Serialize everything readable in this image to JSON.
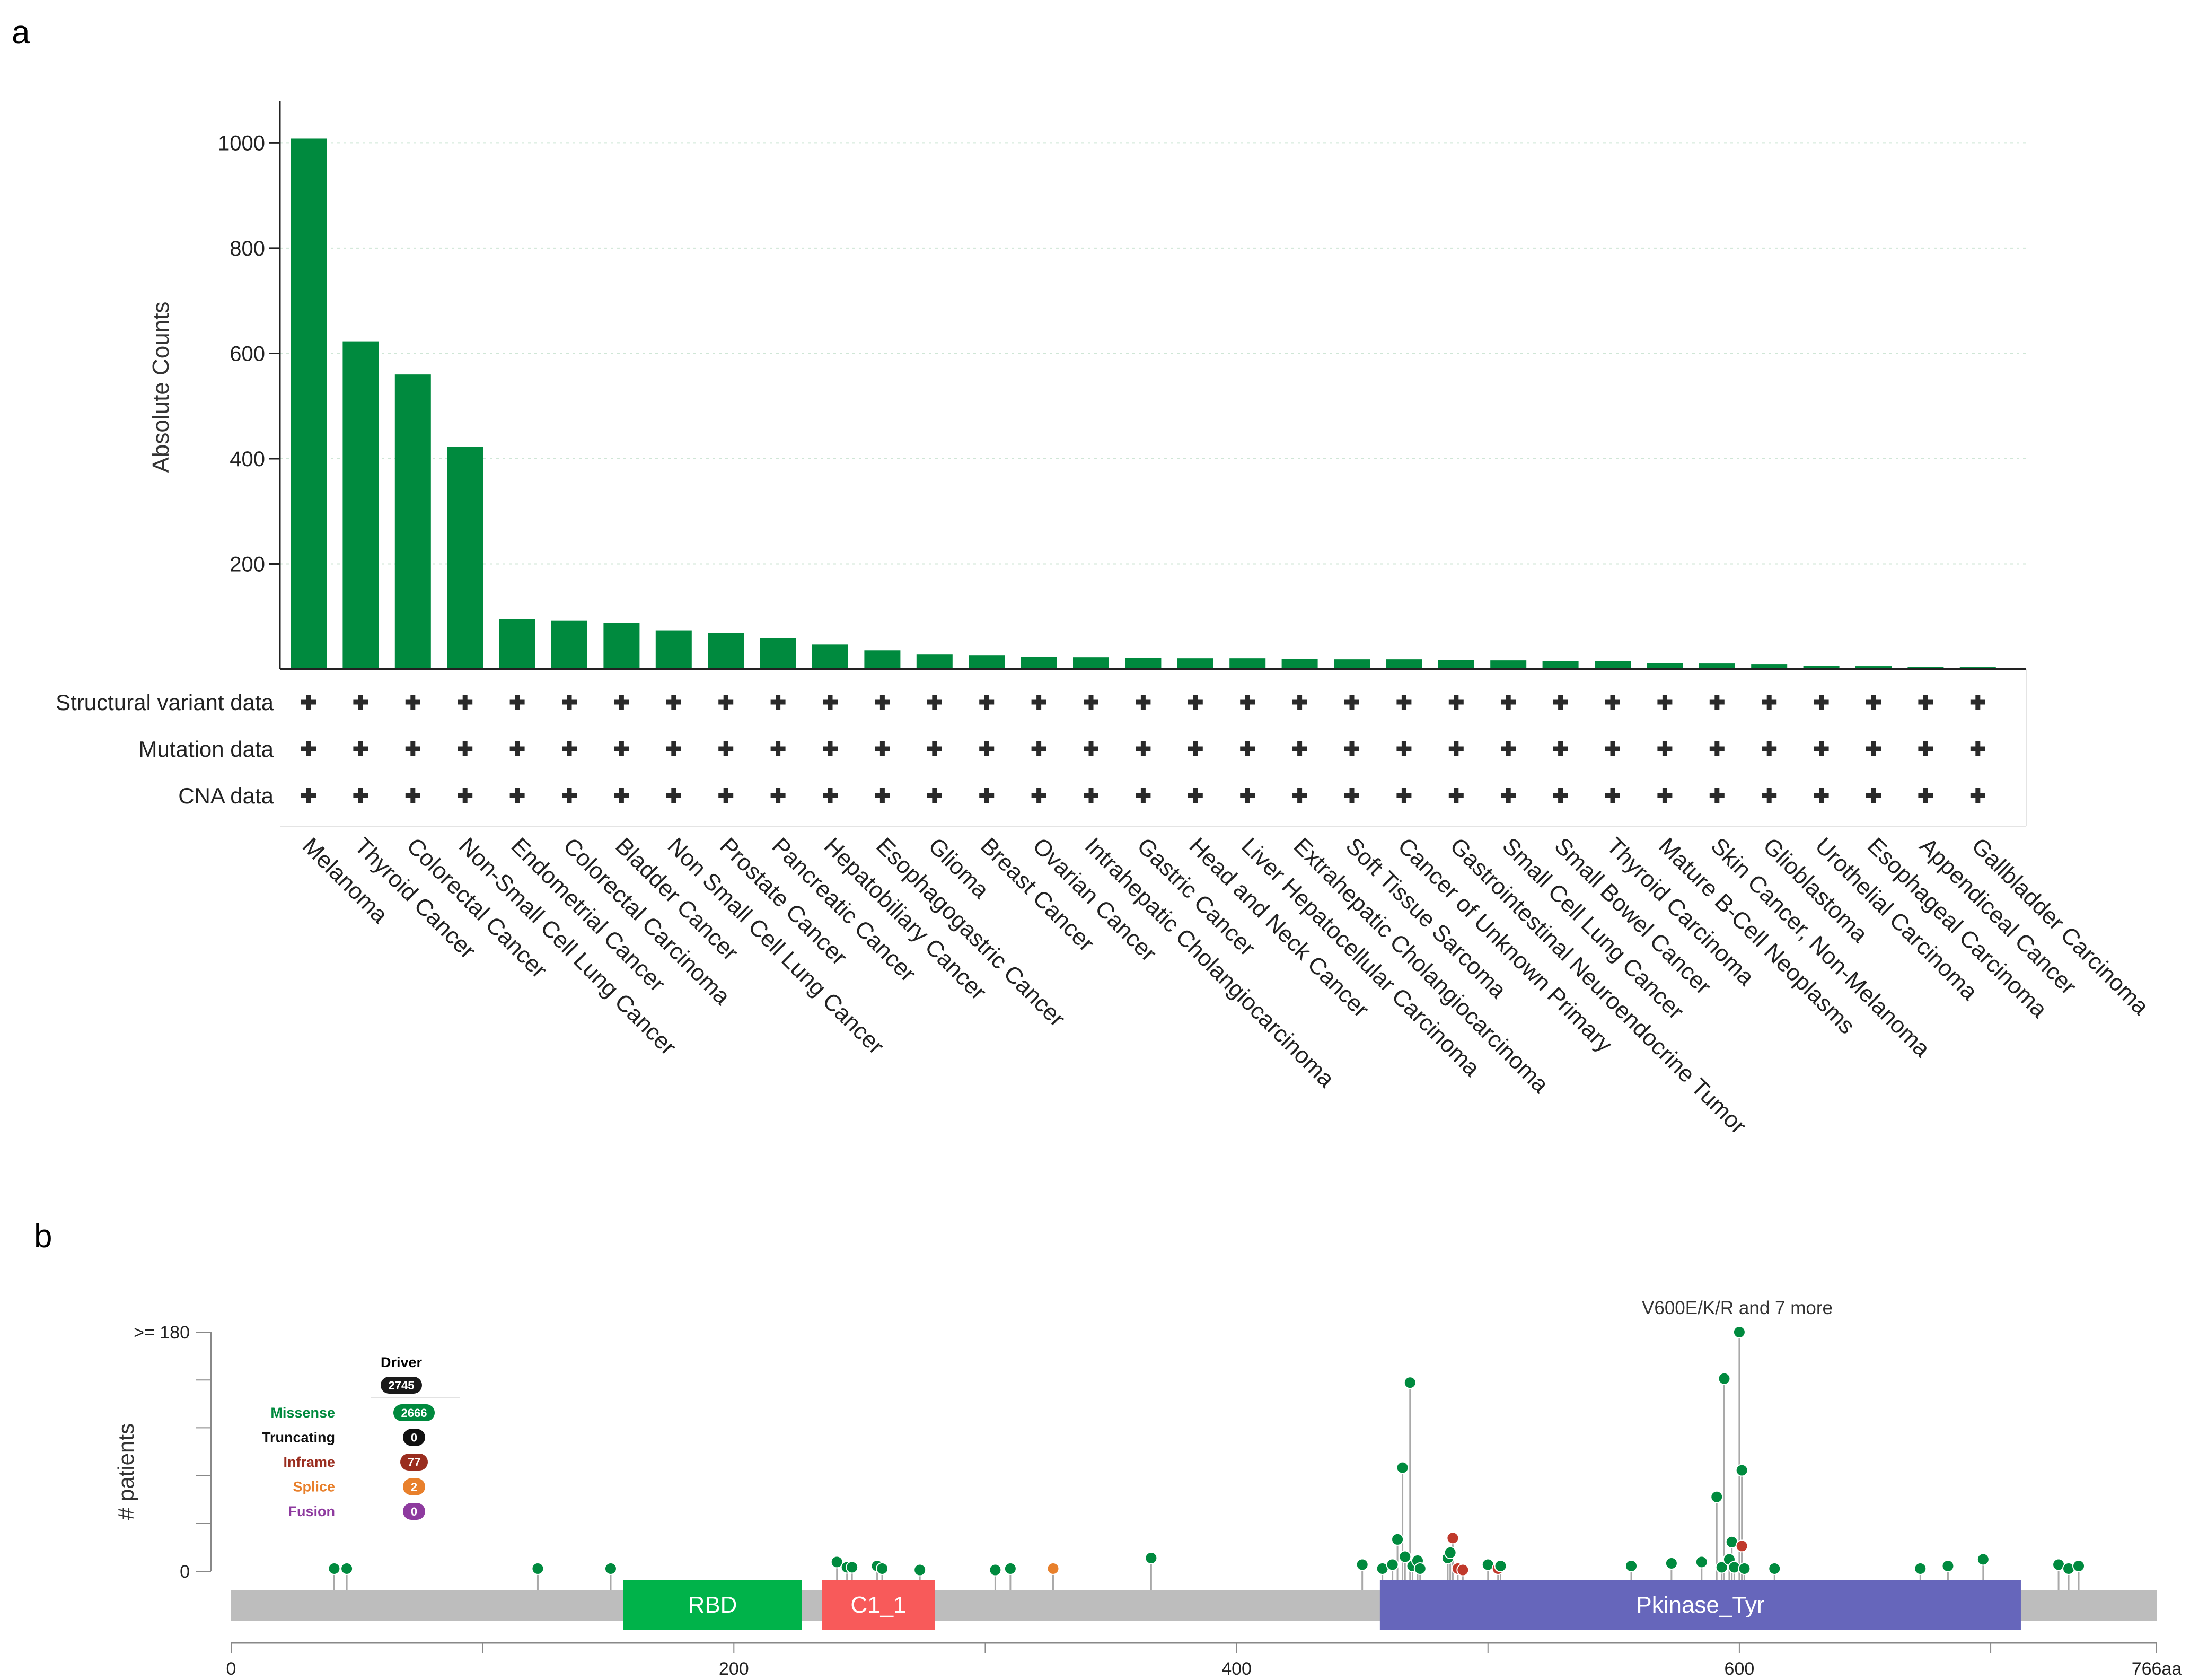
{
  "panels": {
    "a": "a",
    "b": "b"
  },
  "chart_data": [
    {
      "type": "bar",
      "title": "",
      "xlabel": "",
      "ylabel": "Absolute Counts",
      "ylim": [
        0,
        1080
      ],
      "yticks": [
        200,
        400,
        600,
        800,
        1000
      ],
      "grid": true,
      "bar_color": "#008a3e",
      "categories": [
        "Melanoma",
        "Thyroid Cancer",
        "Colorectal Cancer",
        "Non-Small Cell Lung Cancer",
        "Endometrial Cancer",
        "Colorectal Carcinoma",
        "Bladder Cancer",
        "Non Small Cell Lung Cancer",
        "Prostate Cancer",
        "Pancreatic Cancer",
        "Hepatobiliary Cancer",
        "Esophagogastric Cancer",
        "Glioma",
        "Breast Cancer",
        "Ovarian Cancer",
        "Intrahepatic Cholangiocarcinoma",
        "Gastric Cancer",
        "Head and Neck Cancer",
        "Liver Hepatocellular Carcinoma",
        "Extrahepatic Cholangiocarcinoma",
        "Soft Tissue Sarcoma",
        "Cancer of Unknown Primary",
        "Gastrointestinal Neuroendocrine Tumor",
        "Small Cell Lung Cancer",
        "Small Bowel Cancer",
        "Thyroid Carcinoma",
        "Mature B-Cell Neoplasms",
        "Skin Cancer, Non-Melanoma",
        "Glioblastoma",
        "Urothelial Carcinoma",
        "Esophageal Carcinoma",
        "Appendiceal Cancer",
        "Gallbladder Carcinoma"
      ],
      "values": [
        1008,
        623,
        560,
        423,
        95,
        92,
        88,
        74,
        69,
        59,
        47,
        36,
        28,
        26,
        24,
        23,
        22,
        21,
        21,
        20,
        19,
        19,
        18,
        17,
        16,
        16,
        12,
        11,
        9,
        7,
        6,
        5,
        4
      ],
      "data_availability": {
        "rows": [
          "Structural variant data",
          "Mutation data",
          "CNA data"
        ],
        "marker": "+"
      }
    },
    {
      "type": "scatter",
      "subtype": "lollipop",
      "ylabel": "# patients",
      "ytick_labels": [
        "0",
        ">= 180"
      ],
      "ylim": [
        0,
        180
      ],
      "xlim": [
        0,
        766
      ],
      "xtick_labels": [
        "0",
        "200",
        "400",
        "600",
        "766aa"
      ],
      "xticks": [
        0,
        200,
        400,
        600,
        766
      ],
      "annotation": "V600E/K/R and 7 more",
      "domains": [
        {
          "name": "RBD",
          "start": 156,
          "end": 227,
          "color": "#00b34a"
        },
        {
          "name": "C1_1",
          "start": 235,
          "end": 280,
          "color": "#f85a5a"
        },
        {
          "name": "Pkinase_Tyr",
          "start": 457,
          "end": 712,
          "color": "#6666bb"
        }
      ],
      "legend": {
        "title": "Driver",
        "total": "2745",
        "items": [
          {
            "label": "Missense",
            "count": "2666",
            "color": "#008a3e"
          },
          {
            "label": "Truncating",
            "count": "0",
            "color": "#111111"
          },
          {
            "label": "Inframe",
            "count": "77",
            "color": "#9a2d1f"
          },
          {
            "label": "Splice",
            "count": "2",
            "color": "#e8802c"
          },
          {
            "label": "Fusion",
            "count": "0",
            "color": "#8e3a9f"
          }
        ]
      },
      "mutation_colors": {
        "missense": "#008a3e",
        "inframe": "#c0392b",
        "splice": "#e8802c"
      },
      "mutations": [
        {
          "pos": 41,
          "count": 2,
          "type": "missense"
        },
        {
          "pos": 46,
          "count": 2,
          "type": "missense"
        },
        {
          "pos": 122,
          "count": 2,
          "type": "missense"
        },
        {
          "pos": 151,
          "count": 2,
          "type": "missense"
        },
        {
          "pos": 241,
          "count": 7,
          "type": "missense"
        },
        {
          "pos": 245,
          "count": 3,
          "type": "missense"
        },
        {
          "pos": 247,
          "count": 3,
          "type": "missense"
        },
        {
          "pos": 257,
          "count": 4,
          "type": "missense"
        },
        {
          "pos": 259,
          "count": 2,
          "type": "missense"
        },
        {
          "pos": 274,
          "count": 1,
          "type": "missense"
        },
        {
          "pos": 304,
          "count": 1,
          "type": "missense"
        },
        {
          "pos": 310,
          "count": 2,
          "type": "missense"
        },
        {
          "pos": 327,
          "count": 2,
          "type": "splice"
        },
        {
          "pos": 366,
          "count": 10,
          "type": "missense"
        },
        {
          "pos": 450,
          "count": 5,
          "type": "missense"
        },
        {
          "pos": 458,
          "count": 2,
          "type": "missense"
        },
        {
          "pos": 462,
          "count": 5,
          "type": "missense"
        },
        {
          "pos": 464,
          "count": 24,
          "type": "missense"
        },
        {
          "pos": 466,
          "count": 78,
          "type": "missense"
        },
        {
          "pos": 467,
          "count": 11,
          "type": "missense"
        },
        {
          "pos": 469,
          "count": 142,
          "type": "missense"
        },
        {
          "pos": 470,
          "count": 4,
          "type": "missense"
        },
        {
          "pos": 472,
          "count": 8,
          "type": "missense"
        },
        {
          "pos": 473,
          "count": 2,
          "type": "missense"
        },
        {
          "pos": 484,
          "count": 10,
          "type": "missense"
        },
        {
          "pos": 485,
          "count": 14,
          "type": "missense"
        },
        {
          "pos": 486,
          "count": 25,
          "type": "inframe"
        },
        {
          "pos": 488,
          "count": 2,
          "type": "inframe"
        },
        {
          "pos": 490,
          "count": 1,
          "type": "inframe"
        },
        {
          "pos": 500,
          "count": 5,
          "type": "missense"
        },
        {
          "pos": 504,
          "count": 2,
          "type": "inframe"
        },
        {
          "pos": 505,
          "count": 4,
          "type": "missense"
        },
        {
          "pos": 557,
          "count": 4,
          "type": "missense"
        },
        {
          "pos": 573,
          "count": 6,
          "type": "missense"
        },
        {
          "pos": 585,
          "count": 7,
          "type": "missense"
        },
        {
          "pos": 591,
          "count": 56,
          "type": "missense"
        },
        {
          "pos": 593,
          "count": 3,
          "type": "missense"
        },
        {
          "pos": 594,
          "count": 145,
          "type": "missense"
        },
        {
          "pos": 596,
          "count": 9,
          "type": "missense"
        },
        {
          "pos": 597,
          "count": 22,
          "type": "missense"
        },
        {
          "pos": 598,
          "count": 3,
          "type": "missense"
        },
        {
          "pos": 600,
          "count": 180,
          "type": "missense"
        },
        {
          "pos": 601,
          "count": 19,
          "type": "inframe"
        },
        {
          "pos": 601,
          "count": 76,
          "type": "missense"
        },
        {
          "pos": 602,
          "count": 2,
          "type": "missense"
        },
        {
          "pos": 614,
          "count": 2,
          "type": "missense"
        },
        {
          "pos": 672,
          "count": 2,
          "type": "missense"
        },
        {
          "pos": 683,
          "count": 4,
          "type": "missense"
        },
        {
          "pos": 697,
          "count": 9,
          "type": "missense"
        },
        {
          "pos": 727,
          "count": 5,
          "type": "missense"
        },
        {
          "pos": 731,
          "count": 2,
          "type": "missense"
        },
        {
          "pos": 735,
          "count": 4,
          "type": "missense"
        }
      ]
    }
  ]
}
